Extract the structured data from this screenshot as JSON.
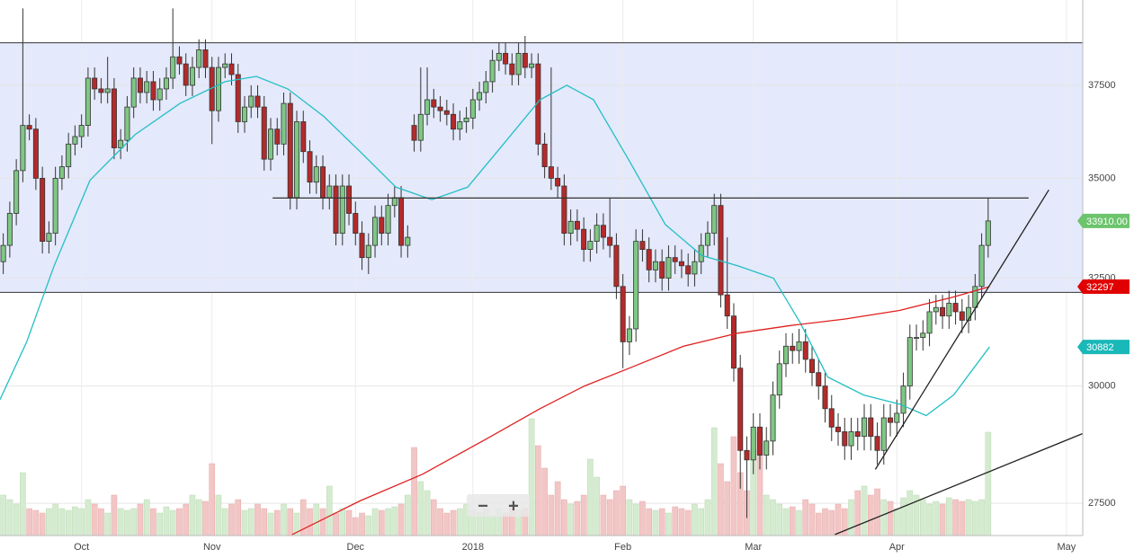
{
  "chart_data": {
    "type": "candlestick",
    "log_y": true,
    "ylim": [
      26850,
      39950
    ],
    "yticks": [
      27500,
      30000,
      32500,
      35000,
      37500
    ],
    "grid": true,
    "vlim": [
      0,
      200
    ],
    "up_color": "#7fc784",
    "down_color": "#b52a2a",
    "edge_color": "#333333",
    "volume_up_color": "#d5ebd0",
    "volume_down_color": "#f3c6c6",
    "categories": [
      null,
      null,
      null,
      null,
      null,
      null,
      null,
      null,
      null,
      null,
      null,
      null,
      "Oct",
      null,
      null,
      null,
      null,
      null,
      null,
      null,
      null,
      null,
      null,
      null,
      null,
      null,
      null,
      null,
      null,
      null,
      null,
      null,
      "Nov",
      null,
      null,
      null,
      null,
      null,
      null,
      null,
      null,
      null,
      null,
      null,
      null,
      null,
      null,
      null,
      null,
      null,
      null,
      null,
      null,
      null,
      "Dec",
      null,
      null,
      null,
      null,
      null,
      null,
      null,
      null,
      null,
      null,
      null,
      null,
      null,
      null,
      null,
      null,
      null,
      "2018",
      null,
      null,
      null,
      null,
      null,
      null,
      null,
      null,
      null,
      null,
      null,
      null,
      null,
      null,
      null,
      null,
      null,
      null,
      null,
      null,
      null,
      null,
      "Feb",
      null,
      null,
      null,
      null,
      null,
      null,
      null,
      null,
      null,
      null,
      null,
      null,
      null,
      null,
      null,
      null,
      null,
      null,
      null,
      "Mar",
      null,
      null,
      null,
      null,
      null,
      null,
      null,
      null,
      null,
      null,
      null,
      null,
      null,
      null,
      null,
      null,
      null,
      null,
      null,
      null,
      null,
      "Apr",
      null,
      null,
      null,
      null,
      null,
      null,
      null,
      null,
      null,
      null,
      null,
      null,
      null,
      null,
      null,
      null,
      null,
      null,
      null,
      null,
      null,
      null,
      null,
      null,
      null,
      "May",
      null,
      null
    ],
    "open": [
      32900,
      33300,
      34100,
      35200,
      36400,
      36300,
      35000,
      33400,
      33600,
      35000,
      35300,
      35900,
      36100,
      36400,
      37700,
      37400,
      37300,
      37400,
      35800,
      36000,
      36900,
      37700,
      37300,
      37600,
      37100,
      37400,
      37700,
      38300,
      38100,
      37500,
      38000,
      38500,
      38000,
      36800,
      38000,
      38100,
      37800,
      36500,
      36900,
      37200,
      36900,
      35500,
      36300,
      35900,
      37000,
      34500,
      36500,
      35700,
      34900,
      35300,
      34500,
      34800,
      33600,
      34800,
      34100,
      33600,
      33000,
      33300,
      34000,
      33600,
      34300,
      34500,
      33300,
      36400,
      36000,
      36700,
      37100,
      36900,
      36800,
      36700,
      36300,
      36500,
      36600,
      37100,
      37300,
      37600,
      38200,
      38400,
      38100,
      37800,
      38400,
      38000,
      38100,
      35900,
      35300,
      35000,
      34800,
      33600,
      33900,
      33700,
      33200,
      33400,
      33800,
      33500,
      33300,
      32300,
      31000,
      31300,
      33400,
      33200,
      32700,
      32900,
      32500,
      33000,
      32900,
      32800,
      32600,
      32900,
      33300,
      33600,
      34300,
      32100,
      31600,
      30400,
      28600,
      28400,
      29100,
      28500,
      28800,
      29800,
      30500,
      30900,
      30800,
      31000,
      30600,
      30300,
      30000,
      29500,
      29100,
      29000,
      28700,
      29000,
      28900,
      29300,
      28900,
      28600,
      29300,
      29200,
      29400,
      30000,
      31100,
      31100,
      31200,
      31700,
      31800,
      31600,
      31900,
      31700,
      31500,
      31800,
      32300,
      33300,
      null,
      null,
      null,
      null,
      null,
      null,
      null,
      null,
      null,
      null,
      null,
      null,
      null,
      null
    ],
    "high": [
      33600,
      34400,
      35500,
      39700,
      36700,
      36600,
      35300,
      33900,
      35300,
      35600,
      36200,
      36400,
      36700,
      38000,
      38000,
      37700,
      38300,
      37700,
      36300,
      37200,
      38000,
      38000,
      37900,
      37900,
      37700,
      38000,
      39700,
      38600,
      38400,
      38300,
      38800,
      38800,
      38300,
      38300,
      38400,
      38400,
      38100,
      37200,
      37500,
      37500,
      37200,
      36600,
      36600,
      37300,
      37300,
      36800,
      36800,
      36000,
      35600,
      35600,
      35100,
      35100,
      35100,
      35100,
      34400,
      33900,
      33600,
      34300,
      34300,
      34600,
      34800,
      34800,
      33800,
      36700,
      38000,
      38000,
      37400,
      37200,
      37100,
      37000,
      36800,
      36900,
      37400,
      37600,
      37900,
      38500,
      38700,
      38700,
      38400,
      38700,
      38900,
      38400,
      38400,
      36200,
      38000,
      35300,
      35100,
      34200,
      34200,
      34000,
      33700,
      34100,
      34100,
      34500,
      33600,
      32600,
      31600,
      33700,
      33700,
      33500,
      33200,
      33200,
      33300,
      33300,
      33200,
      33100,
      33200,
      33600,
      33900,
      34600,
      34600,
      33500,
      31900,
      30700,
      28900,
      29400,
      29400,
      29100,
      30100,
      30800,
      31200,
      31200,
      31300,
      31300,
      30900,
      30600,
      30300,
      29800,
      29400,
      29300,
      29300,
      29300,
      29600,
      29600,
      29200,
      29600,
      29600,
      29700,
      30300,
      31400,
      31400,
      31500,
      32000,
      32100,
      32100,
      32200,
      32200,
      32000,
      32100,
      32600,
      33600,
      34500,
      null,
      null,
      null,
      null,
      null,
      null,
      null,
      null,
      null,
      null,
      null,
      null,
      null,
      null
    ],
    "low": [
      32600,
      33000,
      33800,
      34900,
      36000,
      34700,
      33100,
      33100,
      33300,
      34700,
      35000,
      35600,
      35800,
      36100,
      37100,
      37000,
      37000,
      35500,
      35500,
      35700,
      36600,
      37000,
      37000,
      36800,
      36800,
      37100,
      37400,
      37800,
      37200,
      37200,
      37700,
      37700,
      35900,
      36500,
      37700,
      37500,
      36200,
      36200,
      36600,
      36600,
      35200,
      35200,
      35600,
      35600,
      34200,
      34200,
      35400,
      34600,
      34600,
      34200,
      34200,
      33300,
      33300,
      33800,
      33300,
      32700,
      32600,
      33000,
      33300,
      33300,
      34000,
      33000,
      33000,
      35700,
      35700,
      36400,
      36600,
      36500,
      36400,
      36000,
      36000,
      36200,
      36300,
      36800,
      37000,
      37300,
      37900,
      37800,
      37500,
      37500,
      37700,
      37700,
      35600,
      35000,
      34700,
      34500,
      33300,
      33300,
      33400,
      32900,
      32900,
      33100,
      33200,
      33000,
      32000,
      30400,
      30700,
      31000,
      32900,
      32400,
      32400,
      32200,
      32200,
      32600,
      32500,
      32300,
      32300,
      32600,
      33000,
      33300,
      31800,
      31300,
      30100,
      27800,
      27200,
      28100,
      28200,
      28200,
      28500,
      29500,
      30200,
      30500,
      30500,
      30300,
      30000,
      29700,
      29200,
      28800,
      28700,
      28400,
      28400,
      28600,
      28600,
      28600,
      28300,
      28300,
      28900,
      28900,
      29100,
      29700,
      30800,
      30800,
      30900,
      31400,
      31300,
      31300,
      31400,
      31200,
      31200,
      31500,
      32000,
      33000,
      null,
      null,
      null,
      null,
      null,
      null,
      null,
      null,
      null,
      null,
      null,
      null,
      null,
      null
    ],
    "close": [
      33300,
      34100,
      35200,
      36400,
      36300,
      35000,
      33400,
      33600,
      35000,
      35300,
      35900,
      36100,
      36400,
      37700,
      37400,
      37300,
      37400,
      35800,
      36000,
      36900,
      37700,
      37300,
      37600,
      37100,
      37400,
      37700,
      38300,
      38100,
      37500,
      38000,
      38500,
      38000,
      36800,
      38000,
      38100,
      37800,
      36500,
      36900,
      37200,
      36900,
      35500,
      36300,
      35900,
      37000,
      34500,
      36500,
      35700,
      34900,
      35300,
      34500,
      34800,
      33600,
      34800,
      34100,
      33600,
      33000,
      33300,
      34000,
      33600,
      34300,
      34500,
      33300,
      33500,
      36000,
      36700,
      37100,
      36900,
      36800,
      36700,
      36300,
      36500,
      36600,
      37100,
      37300,
      37600,
      38200,
      38400,
      38100,
      37800,
      38400,
      38000,
      38100,
      35900,
      35300,
      35000,
      34800,
      33600,
      33900,
      33700,
      33200,
      33400,
      33800,
      33500,
      33300,
      32300,
      31000,
      31300,
      33400,
      33200,
      32700,
      32900,
      32500,
      33000,
      32900,
      32800,
      32600,
      32900,
      33300,
      33600,
      34300,
      32100,
      31600,
      30400,
      28600,
      28400,
      29100,
      28500,
      28800,
      29800,
      30500,
      30900,
      30800,
      31000,
      30600,
      30300,
      30000,
      29500,
      29100,
      29000,
      28700,
      29000,
      28900,
      29300,
      28900,
      28600,
      29300,
      29200,
      29400,
      30000,
      31100,
      31100,
      31200,
      31700,
      31800,
      31600,
      31900,
      31700,
      31500,
      31800,
      32300,
      33300,
      33910,
      null,
      null,
      null,
      null,
      null,
      null,
      null,
      null,
      null,
      null,
      null,
      null,
      null,
      null
    ],
    "volume": [
      45,
      40,
      35,
      70,
      30,
      28,
      25,
      30,
      35,
      30,
      28,
      32,
      30,
      40,
      35,
      30,
      25,
      45,
      30,
      28,
      30,
      35,
      40,
      30,
      25,
      32,
      28,
      30,
      35,
      45,
      40,
      38,
      80,
      45,
      30,
      35,
      40,
      28,
      30,
      35,
      30,
      25,
      28,
      35,
      30,
      25,
      40,
      30,
      35,
      30,
      55,
      25,
      30,
      28,
      20,
      25,
      22,
      30,
      28,
      30,
      32,
      35,
      45,
      98,
      60,
      50,
      40,
      30,
      25,
      28,
      30,
      35,
      28,
      25,
      30,
      22,
      30,
      25,
      32,
      28,
      30,
      130,
      100,
      75,
      45,
      60,
      40,
      35,
      38,
      45,
      85,
      65,
      45,
      40,
      50,
      55,
      40,
      35,
      38,
      30,
      28,
      30,
      25,
      32,
      30,
      28,
      35,
      30,
      40,
      120,
      80,
      60,
      110,
      70,
      50,
      95,
      115,
      45,
      40,
      35,
      30,
      32,
      28,
      40,
      35,
      25,
      30,
      28,
      35,
      30,
      40,
      50,
      55,
      45,
      52,
      40,
      38,
      30,
      42,
      50,
      45,
      40,
      35,
      38,
      35,
      42,
      40,
      38,
      40,
      38,
      40,
      115,
      null,
      null,
      null,
      null,
      null,
      null,
      null,
      null,
      null,
      null,
      null,
      null,
      null,
      null
    ],
    "levels": [
      38700,
      32160
    ],
    "level_band_color": "#e4e9fb",
    "segments": [
      {
        "color": "#333333",
        "x": [
          41.3,
          157.2
        ],
        "values": [
          34490,
          34490
        ]
      },
      {
        "color": "#222222",
        "x": [
          133.7,
          160.3
        ],
        "values": [
          28200,
          34700
        ]
      },
      {
        "color": "#222222",
        "x": [
          127.5,
          165.5
        ],
        "values": [
          26870,
          28960
        ]
      }
    ],
    "overlays": [
      {
        "color": "#22bfc6",
        "x": [
          -0.5,
          3.6,
          7.8,
          13.3,
          20.2,
          27.1,
          34,
          38.8,
          43.6,
          49.1,
          54.7,
          60.2,
          65.7,
          71.2,
          76.7,
          82.3,
          86.4,
          90.5,
          96,
          101.5,
          107.1,
          112.6,
          118.1,
          122.2,
          126.4,
          131.9,
          137.4,
          141.5,
          145.7,
          151.2
        ],
        "values": [
          29700,
          31000,
          32800,
          34950,
          36150,
          37000,
          37600,
          37750,
          37400,
          36650,
          35700,
          34770,
          34450,
          34770,
          35900,
          37100,
          37500,
          37100,
          35450,
          33820,
          33050,
          32800,
          32500,
          31440,
          30200,
          29800,
          29600,
          29350,
          29800,
          30882
        ]
      },
      {
        "color": "#e02020",
        "x": [
          44.3,
          54.7,
          64.3,
          74,
          82.3,
          89.1,
          96,
          104.3,
          112.6,
          120.8,
          129.1,
          137.4,
          145.7,
          151.2
        ],
        "values": [
          26870,
          27550,
          28100,
          28840,
          29500,
          30000,
          30400,
          30900,
          31200,
          31380,
          31530,
          31730,
          32050,
          32297
        ]
      }
    ],
    "price_tags": [
      {
        "value": 33910,
        "label": "33910.00",
        "color": "#6cc46c"
      },
      {
        "value": 32297,
        "label": "32297",
        "color": "#e00000"
      },
      {
        "value": 30882,
        "label": "30882",
        "color": "#1ab8b8"
      }
    ]
  },
  "controls": {
    "zoom_out": "−",
    "zoom_in": "+"
  }
}
